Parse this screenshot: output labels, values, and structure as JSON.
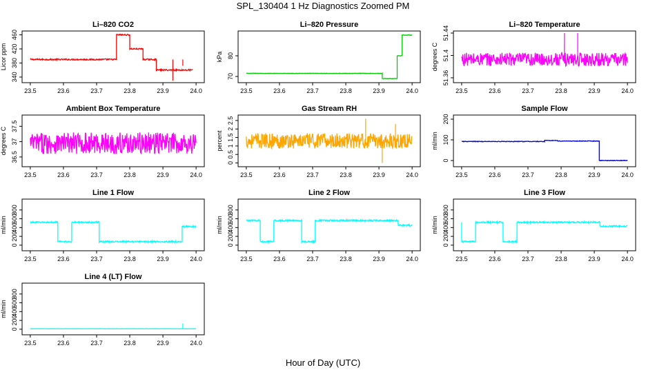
{
  "figure": {
    "title": "SPL_130404  1 Hz Diagnostics Zoomed PM",
    "xlabel": "Hour of Day (UTC)"
  },
  "chart_data": [
    {
      "type": "line",
      "title": "Li–820 CO2",
      "ylabel": "Licor ppm",
      "color": "#ff0000",
      "xlim": [
        23.5,
        24.0
      ],
      "ylim": [
        330,
        465
      ],
      "xticks": [
        "23.5",
        "23.6",
        "23.7",
        "23.8",
        "23.9",
        "24.0"
      ],
      "yticks": [
        340,
        380,
        420,
        460
      ],
      "noise": 2,
      "spikes": [
        [
          23.93,
          330
        ],
        [
          23.96,
          372
        ]
      ],
      "segments": [
        [
          23.5,
          23.76,
          390
        ],
        [
          23.76,
          23.8,
          460
        ],
        [
          23.8,
          23.84,
          420
        ],
        [
          23.84,
          23.88,
          390
        ],
        [
          23.88,
          23.99,
          360
        ]
      ]
    },
    {
      "type": "line",
      "title": "Li–820 Pressure",
      "ylabel": "kPa",
      "color": "#00cc00",
      "xlim": [
        23.5,
        24.0
      ],
      "ylim": [
        68,
        91
      ],
      "xticks": [
        "23.5",
        "23.6",
        "23.7",
        "23.8",
        "23.9",
        "24.0"
      ],
      "yticks": [
        70,
        80
      ],
      "noise": 0.1,
      "spikes": [],
      "segments": [
        [
          23.5,
          23.91,
          71.5
        ],
        [
          23.91,
          23.955,
          69
        ],
        [
          23.955,
          23.97,
          80
        ],
        [
          23.97,
          24.0,
          90
        ]
      ]
    },
    {
      "type": "line",
      "title": "Li–820 Temperature",
      "ylabel": "degrees C",
      "color": "#ff00ff",
      "xlim": [
        23.5,
        24.0
      ],
      "ylim": [
        51.355,
        51.44
      ],
      "xticks": [
        "23.5",
        "23.6",
        "23.7",
        "23.8",
        "23.9",
        "24.0"
      ],
      "yticks": [
        51.36,
        51.4,
        51.44
      ],
      "noise": 0.012,
      "spikes": [
        [
          23.81,
          51.44
        ],
        [
          23.85,
          51.44
        ]
      ],
      "segments": [
        [
          23.5,
          24.0,
          51.393
        ]
      ]
    },
    {
      "type": "line",
      "title": "Ambient Box Temperature",
      "ylabel": "degrees C",
      "color": "#ff00ff",
      "xlim": [
        23.5,
        24.0
      ],
      "ylim": [
        36.25,
        37.8
      ],
      "xticks": [
        "23.5",
        "23.6",
        "23.7",
        "23.8",
        "23.9",
        "24.0"
      ],
      "yticks": [
        36.5,
        37,
        37.5
      ],
      "noise": 0.35,
      "spikes": [],
      "segments": [
        [
          23.5,
          24.0,
          36.95
        ]
      ]
    },
    {
      "type": "line",
      "title": "Gas Stream RH",
      "ylabel": "percent",
      "color": "#ffa500",
      "xlim": [
        23.5,
        24.0
      ],
      "ylim": [
        -0.1,
        2.7
      ],
      "xticks": [
        "23.5",
        "23.6",
        "23.7",
        "23.8",
        "23.9",
        "24.0"
      ],
      "yticks": [
        0,
        0.5,
        1,
        1.5,
        2,
        2.5
      ],
      "noise": 0.45,
      "spikes": [
        [
          23.86,
          2.6
        ],
        [
          23.91,
          0.0
        ],
        [
          23.95,
          2.3
        ]
      ],
      "segments": [
        [
          23.5,
          24.0,
          1.3
        ]
      ]
    },
    {
      "type": "line",
      "title": "Sample Flow",
      "ylabel": "ml/min",
      "color": "#0000cc",
      "xlim": [
        23.5,
        24.0
      ],
      "ylim": [
        -20,
        210
      ],
      "xticks": [
        "23.5",
        "23.6",
        "23.7",
        "23.8",
        "23.9",
        "24.0"
      ],
      "yticks": [
        0,
        100,
        200
      ],
      "noise": 1.5,
      "spikes": [],
      "segments": [
        [
          23.5,
          23.75,
          92
        ],
        [
          23.75,
          23.79,
          97
        ],
        [
          23.79,
          23.915,
          94
        ],
        [
          23.915,
          24.0,
          0
        ]
      ]
    },
    {
      "type": "line",
      "title": "Line 1 Flow",
      "ylabel": "ml/min",
      "color": "#00ffff",
      "xlim": [
        23.5,
        24.0
      ],
      "ylim": [
        -80,
        1000
      ],
      "xticks": [
        "23.5",
        "23.6",
        "23.7",
        "23.8",
        "23.9",
        "24.0"
      ],
      "yticks": [
        0,
        200,
        400,
        600,
        800
      ],
      "noise": 18,
      "spikes": [],
      "segments": [
        [
          23.5,
          23.583,
          520
        ],
        [
          23.583,
          23.625,
          80
        ],
        [
          23.625,
          23.708,
          520
        ],
        [
          23.708,
          23.958,
          80
        ],
        [
          23.958,
          24.0,
          420
        ]
      ]
    },
    {
      "type": "line",
      "title": "Line 2 Flow",
      "ylabel": "ml/min",
      "color": "#00ffff",
      "xlim": [
        23.5,
        24.0
      ],
      "ylim": [
        -80,
        1000
      ],
      "xticks": [
        "23.5",
        "23.6",
        "23.7",
        "23.8",
        "23.9",
        "24.0"
      ],
      "yticks": [
        0,
        200,
        400,
        600,
        800
      ],
      "noise": 18,
      "spikes": [],
      "segments": [
        [
          23.5,
          23.542,
          560
        ],
        [
          23.542,
          23.583,
          80
        ],
        [
          23.583,
          23.667,
          560
        ],
        [
          23.667,
          23.708,
          80
        ],
        [
          23.708,
          23.958,
          560
        ],
        [
          23.958,
          24.0,
          450
        ]
      ]
    },
    {
      "type": "line",
      "title": "Line 3 Flow",
      "ylabel": "ml/min",
      "color": "#00ffff",
      "xlim": [
        23.5,
        24.0
      ],
      "ylim": [
        -80,
        1000
      ],
      "xticks": [
        "23.5",
        "23.6",
        "23.7",
        "23.8",
        "23.9",
        "24.0"
      ],
      "yticks": [
        0,
        200,
        400,
        600,
        800
      ],
      "noise": 18,
      "spikes": [
        [
          23.5,
          520
        ]
      ],
      "segments": [
        [
          23.5,
          23.542,
          80
        ],
        [
          23.542,
          23.625,
          520
        ],
        [
          23.625,
          23.667,
          80
        ],
        [
          23.667,
          23.917,
          520
        ],
        [
          23.917,
          24.0,
          430
        ]
      ]
    },
    {
      "type": "line",
      "title": "Line 4 (LT) Flow",
      "ylabel": "ml/min",
      "color": "#00ffff",
      "xlim": [
        23.5,
        24.0
      ],
      "ylim": [
        -80,
        1000
      ],
      "xticks": [
        "23.5",
        "23.6",
        "23.7",
        "23.8",
        "23.9",
        "24.0"
      ],
      "yticks": [
        0,
        200,
        400,
        600,
        800
      ],
      "noise": 2,
      "spikes": [
        [
          23.96,
          130
        ]
      ],
      "segments": [
        [
          23.5,
          24.0,
          10
        ]
      ]
    }
  ]
}
